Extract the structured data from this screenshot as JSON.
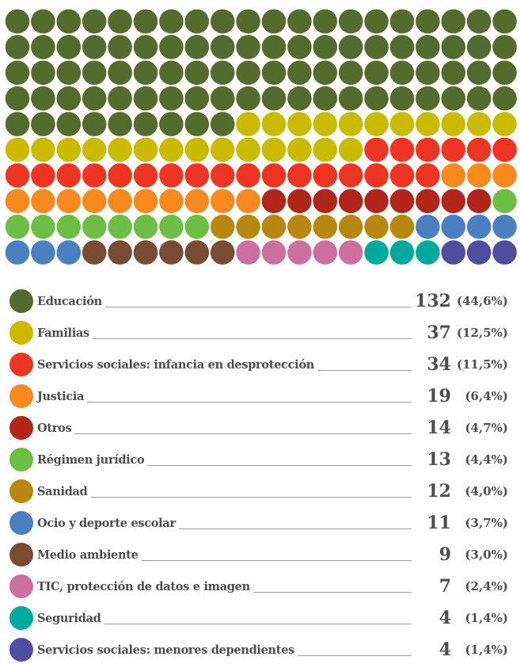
{
  "chart_data": {
    "type": "waffle",
    "categories": [
      "Educación",
      "Familias",
      "Servicios sociales: infancia en desprotección",
      "Justicia",
      "Otros",
      "Régimen jurídico",
      "Sanidad",
      "Ocio y deporte escolar",
      "Medio ambiente",
      "TIC, protección de datos e imagen",
      "Seguridad",
      "Servicios sociales: menores dependientes"
    ],
    "values": [
      132,
      37,
      34,
      19,
      14,
      13,
      12,
      11,
      9,
      7,
      4,
      4
    ],
    "percent_labels": [
      "(44,6%)",
      "(12,5%)",
      "(11,5%)",
      "(6,4%)",
      "(4,7%)",
      "(4,4%)",
      "(4,0%)",
      "(3,7%)",
      "(3,0%)",
      "(2,4%)",
      "(1,4%)",
      "(1,4%)"
    ],
    "colors": [
      "#546b2e",
      "#cbbb00",
      "#ee3524",
      "#f7891f",
      "#b2261a",
      "#6dbe45",
      "#b9860f",
      "#4a7fc1",
      "#7a4b33",
      "#cc6fa1",
      "#00a99d",
      "#4e4da0"
    ]
  }
}
